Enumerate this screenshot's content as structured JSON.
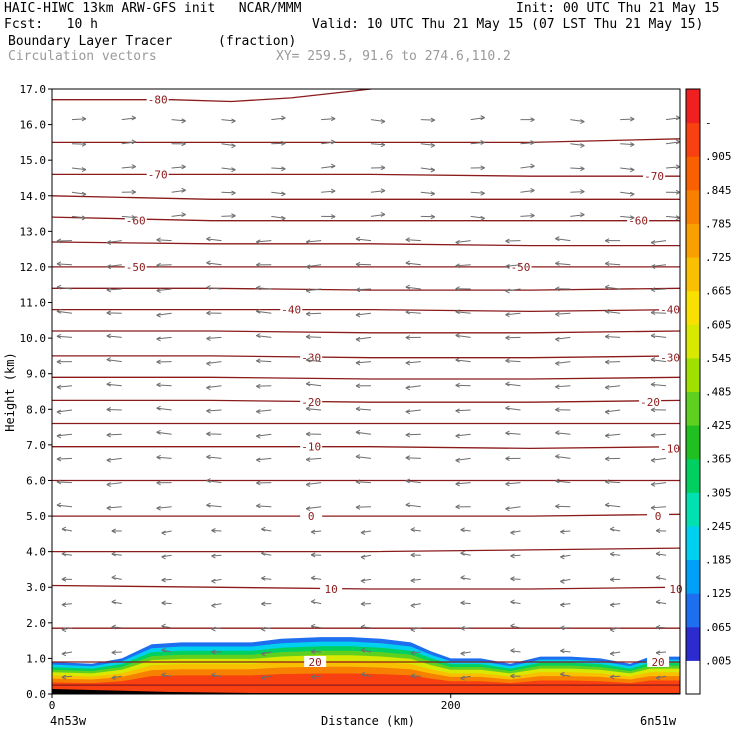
{
  "header": {
    "model_line": "HAIC-HIWC 13km ARW-GFS init   NCAR/MMM",
    "init": "Init: 00 UTC Thu 21 May 15",
    "fcst": "Fcst:   10 h",
    "valid": "Valid: 10 UTC Thu 21 May 15 (07 LST Thu 21 May 15)",
    "field": "Boundary Layer Tracer",
    "units": "(fraction)",
    "overlay": "Circulation vectors",
    "xy": "XY= 259.5, 91.6 to 274.6,110.2"
  },
  "colors": {
    "contour": "#8b1a1a",
    "vector": "#6e6e6e",
    "frame": "#000000"
  },
  "chart_data": {
    "type": "heatmap",
    "title": "Boundary Layer Tracer (fraction)",
    "xlabel": "Distance (km)",
    "ylabel": "Height (km)",
    "xlim": [
      0,
      315
    ],
    "ylim": [
      0,
      17
    ],
    "x_ticks": [
      0,
      200
    ],
    "x_tick_labels": [
      "0",
      "200"
    ],
    "x_endpoints": [
      "4n53w",
      "6n51w"
    ],
    "y_ticks": [
      0.0,
      1.0,
      2.0,
      3.0,
      4.0,
      5.0,
      6.0,
      7.0,
      8.0,
      9.0,
      10.0,
      11.0,
      12.0,
      13.0,
      14.0,
      15.0,
      16.0,
      17.0
    ],
    "y_tick_labels": [
      "0.0",
      "1.0",
      "2.0",
      "3.0",
      "4.0",
      "5.0",
      "6.0",
      "7.0",
      "8.0",
      "9.0",
      "10.0",
      "11.0",
      "12.0",
      "13.0",
      "14.0",
      "15.0",
      "16.0",
      "17.0"
    ],
    "colorbar": {
      "labels": [
        ".005",
        ".065",
        ".125",
        ".185",
        ".245",
        ".305",
        ".365",
        ".425",
        ".485",
        ".545",
        ".605",
        ".665",
        ".725",
        ".785",
        ".845",
        ".905",
        "-"
      ],
      "colors": [
        "#ffffff",
        "#2b2bd0",
        "#1e6ef0",
        "#00a0f8",
        "#00d0f0",
        "#00e0b0",
        "#00d060",
        "#20c020",
        "#60d020",
        "#a0e000",
        "#d8e800",
        "#f8e000",
        "#f8c000",
        "#f8a000",
        "#f88000",
        "#f86000",
        "#f84010",
        "#f02020"
      ]
    },
    "temperature_contours": [
      {
        "label": "-80",
        "y": [
          16.7,
          16.7,
          16.65,
          16.75,
          17.0
        ],
        "x": [
          0,
          60,
          90,
          120,
          160
        ]
      },
      {
        "label": "",
        "y": [
          15.5,
          15.5,
          15.5,
          15.5,
          15.6
        ],
        "x": [
          0,
          80,
          160,
          240,
          315
        ]
      },
      {
        "label": "-70",
        "y": [
          14.6,
          14.6,
          14.6,
          14.55,
          14.55
        ],
        "x": [
          0,
          80,
          160,
          240,
          315
        ]
      },
      {
        "label": "",
        "y": [
          14.0,
          13.9,
          13.9,
          13.9,
          13.9
        ],
        "x": [
          0,
          80,
          160,
          240,
          315
        ]
      },
      {
        "label": "-60",
        "y": [
          13.4,
          13.3,
          13.3,
          13.3,
          13.3
        ],
        "x": [
          0,
          80,
          160,
          240,
          315
        ]
      },
      {
        "label": "",
        "y": [
          12.7,
          12.65,
          12.65,
          12.6,
          12.6
        ],
        "x": [
          0,
          80,
          160,
          240,
          315
        ]
      },
      {
        "label": "-50",
        "y": [
          12.0,
          12.0,
          12.0,
          12.0,
          12.0
        ],
        "x": [
          0,
          80,
          160,
          240,
          315
        ]
      },
      {
        "label": "",
        "y": [
          11.4,
          11.4,
          11.35,
          11.35,
          11.4
        ],
        "x": [
          0,
          80,
          160,
          240,
          315
        ]
      },
      {
        "label": "-40",
        "y": [
          10.8,
          10.8,
          10.8,
          10.75,
          10.8
        ],
        "x": [
          0,
          80,
          160,
          240,
          315
        ]
      },
      {
        "label": "",
        "y": [
          10.2,
          10.2,
          10.15,
          10.15,
          10.2
        ],
        "x": [
          0,
          80,
          160,
          240,
          315
        ]
      },
      {
        "label": "-30",
        "y": [
          9.5,
          9.5,
          9.45,
          9.45,
          9.5
        ],
        "x": [
          0,
          80,
          160,
          240,
          315
        ]
      },
      {
        "label": "",
        "y": [
          8.9,
          8.9,
          8.85,
          8.85,
          8.9
        ],
        "x": [
          0,
          80,
          160,
          240,
          315
        ]
      },
      {
        "label": "-20",
        "y": [
          8.25,
          8.25,
          8.2,
          8.2,
          8.25
        ],
        "x": [
          0,
          80,
          160,
          240,
          315
        ]
      },
      {
        "label": "",
        "y": [
          7.6,
          7.6,
          7.6,
          7.6,
          7.6
        ],
        "x": [
          0,
          80,
          160,
          240,
          315
        ]
      },
      {
        "label": "-10",
        "y": [
          6.95,
          6.95,
          6.95,
          6.9,
          6.95
        ],
        "x": [
          0,
          80,
          160,
          240,
          315
        ]
      },
      {
        "label": "",
        "y": [
          6.0,
          6.0,
          6.0,
          6.0,
          6.0
        ],
        "x": [
          0,
          80,
          160,
          240,
          315
        ]
      },
      {
        "label": "0",
        "y": [
          5.0,
          5.0,
          5.0,
          5.0,
          5.05
        ],
        "x": [
          0,
          80,
          160,
          240,
          315
        ]
      },
      {
        "label": "",
        "y": [
          4.0,
          4.0,
          4.0,
          4.05,
          4.1
        ],
        "x": [
          0,
          80,
          160,
          240,
          315
        ]
      },
      {
        "label": "10",
        "y": [
          3.05,
          3.0,
          2.95,
          2.95,
          3.0
        ],
        "x": [
          0,
          80,
          160,
          240,
          315
        ]
      },
      {
        "label": "",
        "y": [
          1.85,
          1.85,
          1.85,
          1.85,
          1.85
        ],
        "x": [
          0,
          80,
          160,
          240,
          315
        ]
      },
      {
        "label": "20",
        "y": [
          0.9,
          0.9,
          0.9,
          0.9,
          0.9
        ],
        "x": [
          0,
          80,
          160,
          240,
          315
        ]
      },
      {
        "label": "",
        "y": [
          0.25,
          0.25,
          0.25,
          0.25,
          0.25
        ],
        "x": [
          0,
          80,
          160,
          240,
          315
        ]
      }
    ],
    "contour_labels": [
      {
        "text": "-80",
        "x": 53,
        "y": 16.7
      },
      {
        "text": "-70",
        "x": 53,
        "y": 14.6
      },
      {
        "text": "-70",
        "x": 302,
        "y": 14.55
      },
      {
        "text": "-60",
        "x": 42,
        "y": 13.3
      },
      {
        "text": "-60",
        "x": 294,
        "y": 13.3
      },
      {
        "text": "-50",
        "x": 42,
        "y": 12.0
      },
      {
        "text": "-50",
        "x": 235,
        "y": 12.0
      },
      {
        "text": "-40",
        "x": 120,
        "y": 10.8
      },
      {
        "text": "-40",
        "x": 310,
        "y": 10.8
      },
      {
        "text": "-30",
        "x": 130,
        "y": 9.45
      },
      {
        "text": "-30",
        "x": 310,
        "y": 9.45
      },
      {
        "text": "-20",
        "x": 130,
        "y": 8.2
      },
      {
        "text": "-20",
        "x": 300,
        "y": 8.2
      },
      {
        "text": "-10",
        "x": 130,
        "y": 6.95
      },
      {
        "text": "-10",
        "x": 310,
        "y": 6.9
      },
      {
        "text": "0",
        "x": 130,
        "y": 5.0
      },
      {
        "text": "0",
        "x": 304,
        "y": 5.0
      },
      {
        "text": "10",
        "x": 140,
        "y": 2.95
      },
      {
        "text": "10",
        "x": 318,
        "y": 2.95
      },
      {
        "text": "20",
        "x": 132,
        "y": 0.9
      },
      {
        "text": "20",
        "x": 304,
        "y": 0.9
      }
    ],
    "tracer_top_km": {
      "x": [
        0,
        20,
        35,
        50,
        65,
        80,
        100,
        115,
        135,
        150,
        165,
        180,
        190,
        200,
        215,
        230,
        245,
        260,
        275,
        290,
        300,
        315
      ],
      "y": [
        0.9,
        0.85,
        1.0,
        1.4,
        1.45,
        1.45,
        1.45,
        1.55,
        1.6,
        1.6,
        1.55,
        1.45,
        1.2,
        1.0,
        1.0,
        0.85,
        1.05,
        1.05,
        1.0,
        0.85,
        1.05,
        1.05
      ]
    },
    "tracer_layers": [
      {
        "value": 0.065,
        "depth_frac": 0.0
      },
      {
        "value": 0.185,
        "depth_frac": 0.08
      },
      {
        "value": 0.305,
        "depth_frac": 0.16
      },
      {
        "value": 0.425,
        "depth_frac": 0.24
      },
      {
        "value": 0.545,
        "depth_frac": 0.32
      },
      {
        "value": 0.665,
        "depth_frac": 0.42
      },
      {
        "value": 0.785,
        "depth_frac": 0.52
      },
      {
        "value": 0.905,
        "depth_frac": 0.64
      }
    ]
  }
}
